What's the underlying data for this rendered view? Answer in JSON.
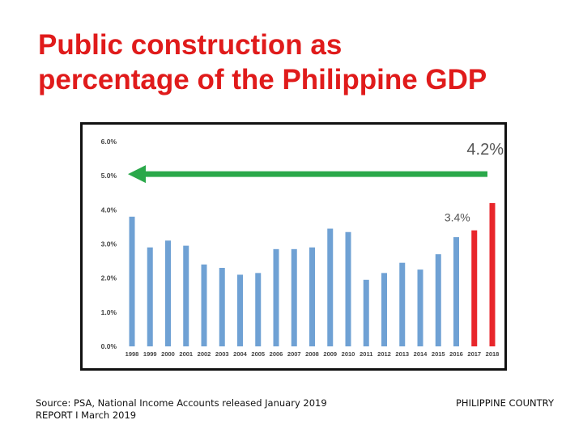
{
  "slide": {
    "title_line1": "Public construction as",
    "title_line2": "percentage of the Philippine GDP",
    "source": "Source: PSA, National Income Accounts released January 2019",
    "report": "REPORT I  March  2019",
    "brand": "PHILIPPINE COUNTRY"
  },
  "chart_data": {
    "type": "bar",
    "title": "",
    "xlabel": "",
    "ylabel": "",
    "ylim": [
      0,
      6
    ],
    "yticks": [
      "0.0%",
      "1.0%",
      "2.0%",
      "3.0%",
      "4.0%",
      "5.0%",
      "6.0%"
    ],
    "categories": [
      "1998",
      "1999",
      "2000",
      "2001",
      "2002",
      "2003",
      "2004",
      "2005",
      "2006",
      "2007",
      "2008",
      "2009",
      "2010",
      "2011",
      "2012",
      "2013",
      "2014",
      "2015",
      "2016",
      "2017",
      "2018"
    ],
    "values": [
      3.8,
      2.9,
      3.1,
      2.95,
      2.4,
      2.3,
      2.1,
      2.15,
      2.85,
      2.85,
      2.9,
      3.45,
      3.35,
      1.95,
      2.15,
      2.45,
      2.25,
      2.7,
      3.2,
      3.4,
      4.2
    ],
    "colors": {
      "historical": "#6fa1d4",
      "highlight": "#e8262b",
      "arrow": "#2aa84a",
      "label_text": "#555555"
    },
    "highlight_categories": [
      "2017",
      "2018"
    ],
    "annotations": [
      {
        "category": "2017",
        "text": "3.4%"
      },
      {
        "category": "2018",
        "text": "4.2%"
      }
    ],
    "target_arrow": {
      "value": 5.0,
      "direction": "left"
    }
  }
}
